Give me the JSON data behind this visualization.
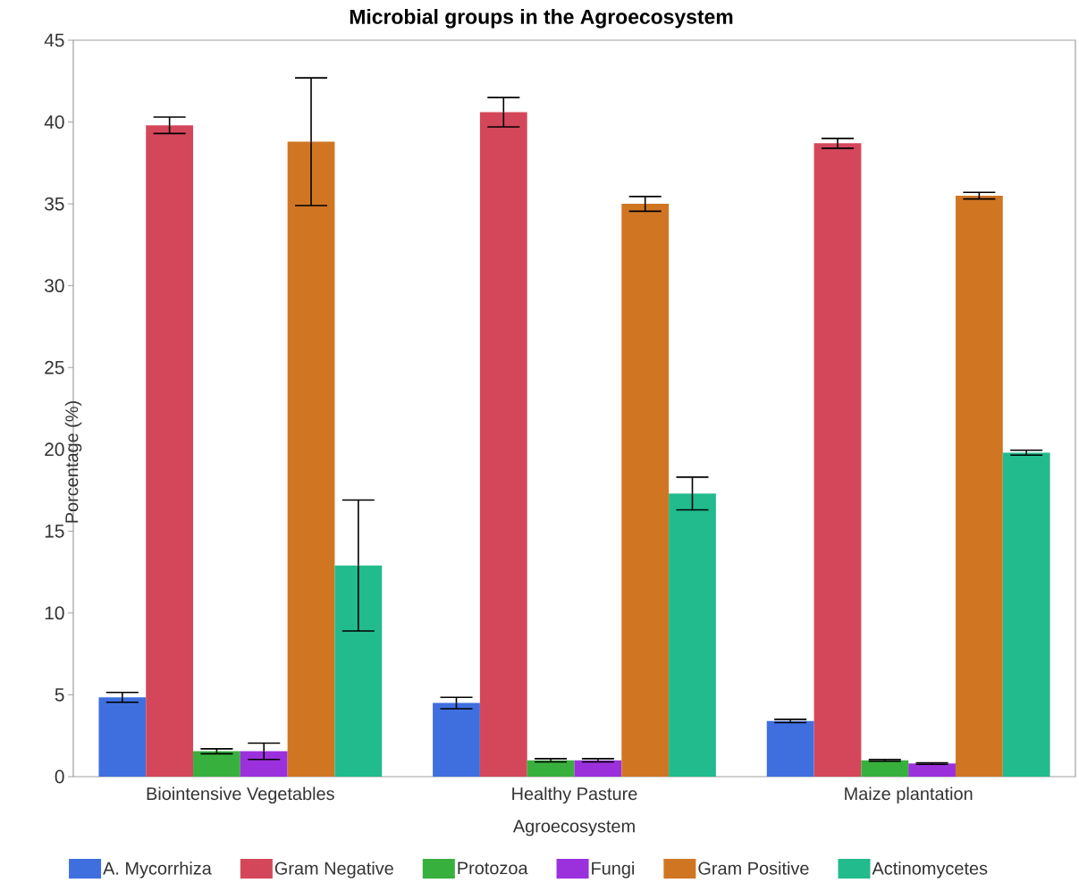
{
  "chart_data": {
    "type": "bar",
    "title": "Microbial groups in the Agroecosystem",
    "xlabel": "Agroecosystem",
    "ylabel": "Porcentage (%)",
    "categories": [
      "Biointensive Vegetables",
      "Healthy Pasture",
      "Maize plantation"
    ],
    "series": [
      {
        "name": "A. Mycorrhiza",
        "color": "#3f6fdf",
        "values": [
          4.85,
          4.5,
          3.4
        ],
        "errors": [
          0.3,
          0.35,
          0.1
        ]
      },
      {
        "name": "Gram Negative",
        "color": "#d4475a",
        "values": [
          39.8,
          40.6,
          38.7
        ],
        "errors": [
          0.5,
          0.9,
          0.3
        ]
      },
      {
        "name": "Protozoa",
        "color": "#38b03e",
        "values": [
          1.55,
          1.0,
          1.0
        ],
        "errors": [
          0.15,
          0.1,
          0.05
        ]
      },
      {
        "name": "Fungi",
        "color": "#9b30dd",
        "values": [
          1.55,
          1.0,
          0.8
        ],
        "errors": [
          0.5,
          0.1,
          0.05
        ]
      },
      {
        "name": "Gram Positive",
        "color": "#d07623",
        "values": [
          38.8,
          35.0,
          35.5
        ],
        "errors": [
          3.9,
          0.45,
          0.2
        ]
      },
      {
        "name": "Actinomycetes",
        "color": "#21bb8d",
        "values": [
          12.9,
          17.3,
          19.8
        ],
        "errors": [
          4.0,
          1.0,
          0.15
        ]
      }
    ],
    "ylim": [
      0,
      45
    ],
    "yticks": [
      0,
      5,
      10,
      15,
      20,
      25,
      30,
      35,
      40,
      45
    ],
    "legend": "bottom"
  }
}
